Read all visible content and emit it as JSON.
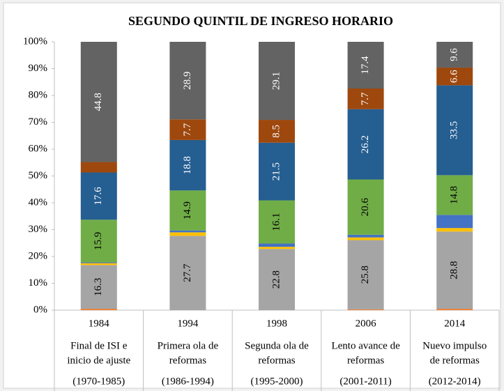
{
  "chart_data": {
    "type": "stacked_bar",
    "title": "SEGUNDO QUINTIL DE INGRESO HORARIO",
    "categories": [
      "1984",
      "1994",
      "1998",
      "2006",
      "2014"
    ],
    "category_descriptions": [
      [
        "Final de ISI e",
        "inicio de ajuste"
      ],
      [
        "Primera ola de",
        "reformas"
      ],
      [
        "Segunda ola de",
        "reformas"
      ],
      [
        "Lento avance de",
        "reformas"
      ],
      [
        "Nuevo impulso",
        "de reformas"
      ]
    ],
    "category_periods": [
      "(1970-1985)",
      "(1986-1994)",
      "(1995-2000)",
      "(2001-2011)",
      "(2012-2014)"
    ],
    "ylim": [
      0,
      100
    ],
    "yticks": [
      {
        "value": 0,
        "label": "0%"
      },
      {
        "value": 10,
        "label": "10%"
      },
      {
        "value": 20,
        "label": "20%"
      },
      {
        "value": 30,
        "label": "30%"
      },
      {
        "value": 40,
        "label": "40%"
      },
      {
        "value": 50,
        "label": "50%"
      },
      {
        "value": 60,
        "label": "60%"
      },
      {
        "value": 70,
        "label": "70%"
      },
      {
        "value": 80,
        "label": "80%"
      },
      {
        "value": 90,
        "label": "90%"
      },
      {
        "value": 100,
        "label": "100%"
      }
    ],
    "series": [
      {
        "color": "#ed7d31",
        "values": [
          0.5,
          0,
          0,
          0.3,
          0.5
        ],
        "value_labels": [
          null,
          null,
          null,
          null,
          null
        ]
      },
      {
        "color": "#a5a5a5",
        "label_color": "#000000",
        "values": [
          16.3,
          27.7,
          22.8,
          25.8,
          28.8
        ],
        "value_labels": [
          "16.3",
          "27.7",
          "22.8",
          "25.8",
          "28.8"
        ]
      },
      {
        "color": "#ffc000",
        "values": [
          0.7,
          1.3,
          0.8,
          1.0,
          1.3
        ],
        "value_labels": [
          null,
          null,
          null,
          null,
          null
        ]
      },
      {
        "color": "#4472c4",
        "values": [
          0.3,
          0.7,
          1.2,
          1.0,
          4.9
        ],
        "value_labels": [
          null,
          null,
          null,
          null,
          null
        ]
      },
      {
        "color": "#70ad47",
        "label_color": "#000000",
        "values": [
          15.9,
          14.9,
          16.1,
          20.6,
          14.8
        ],
        "value_labels": [
          "15.9",
          "14.9",
          "16.1",
          "20.6",
          "14.8"
        ]
      },
      {
        "color": "#255e91",
        "label_color": "#ffffff",
        "values": [
          17.6,
          18.8,
          21.5,
          26.2,
          33.5
        ],
        "value_labels": [
          "17.6",
          "18.8",
          "21.5",
          "26.2",
          "33.5"
        ]
      },
      {
        "color": "#9e480e",
        "label_color": "#ffffff",
        "values": [
          3.9,
          7.7,
          8.5,
          7.7,
          6.6
        ],
        "value_labels": [
          null,
          "7.7",
          "8.5",
          "7.7",
          "6.6"
        ]
      },
      {
        "color": "#636363",
        "label_color": "#ffffff",
        "values": [
          44.8,
          28.9,
          29.1,
          17.4,
          9.6
        ],
        "value_labels": [
          "44.8",
          "28.9",
          "29.1",
          "17.4",
          "9.6"
        ]
      }
    ]
  }
}
